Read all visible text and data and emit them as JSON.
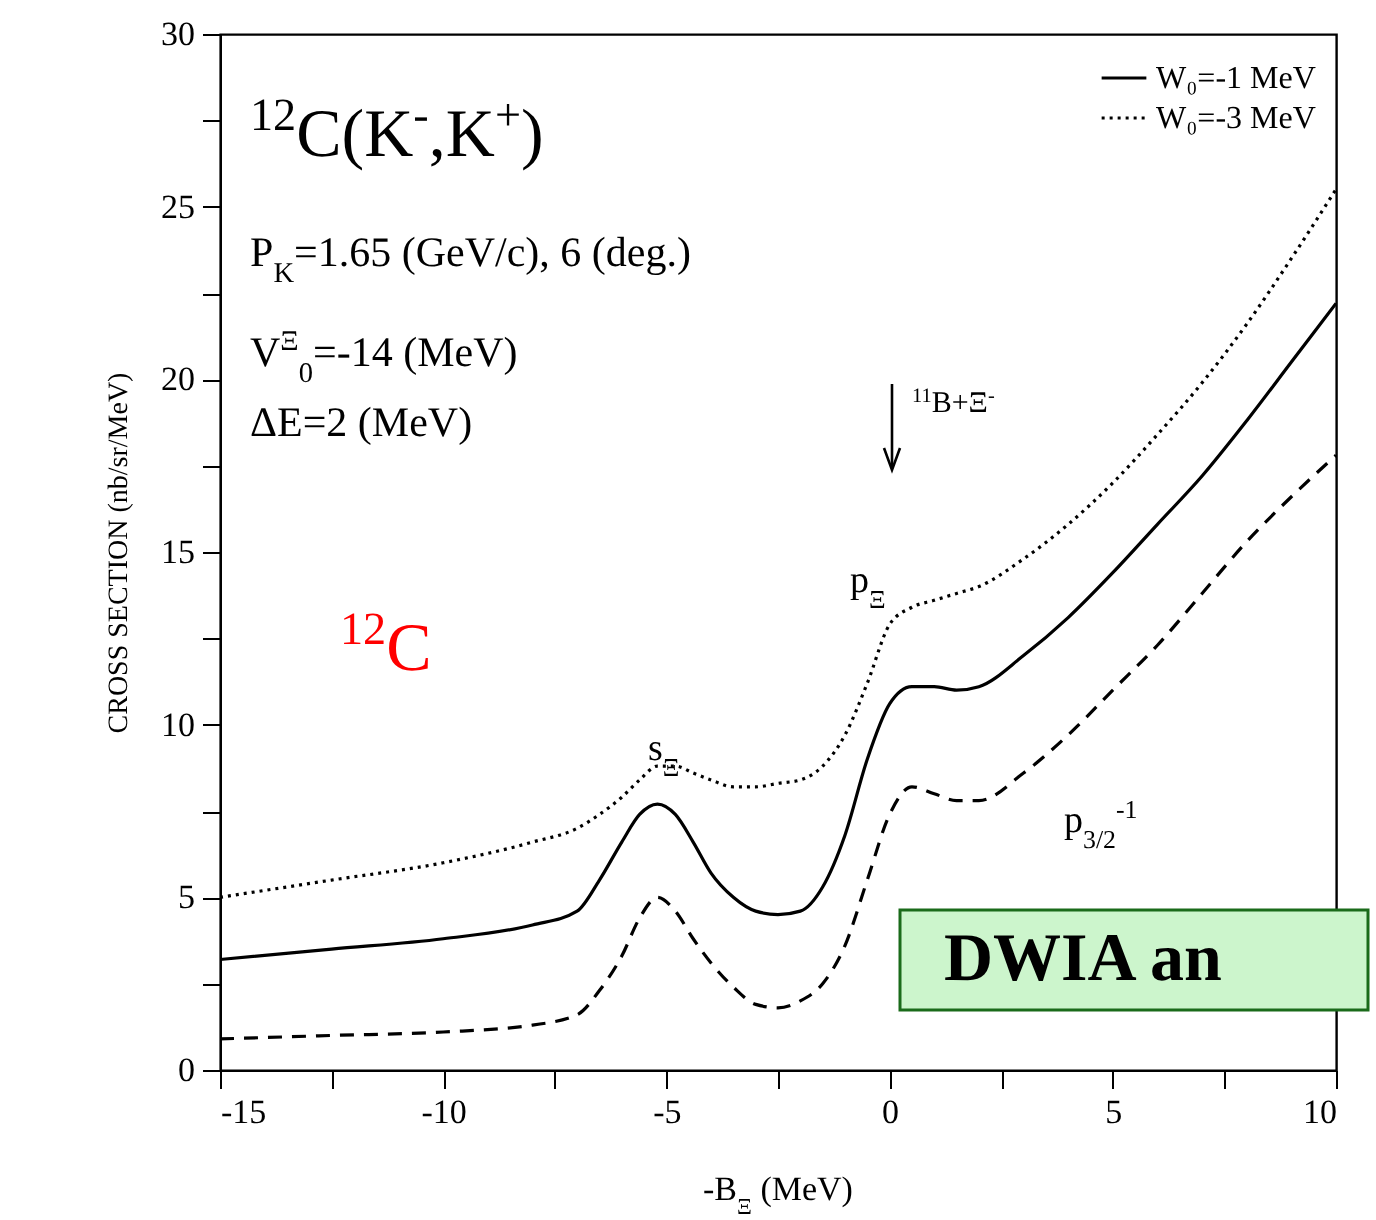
{
  "chart_data": {
    "type": "line",
    "xlabel": "-B$_{Ξ}$ (MeV)",
    "ylabel": "CROSS SECTION (nb/sr/MeV)",
    "x": [
      -15,
      -12.5,
      -10,
      -8,
      -7,
      -6.5,
      -6,
      -5.6,
      -5.2,
      -4.8,
      -4.4,
      -4,
      -3.5,
      -3,
      -2.5,
      -2,
      -1.5,
      -1,
      -0.5,
      0,
      0.5,
      1,
      1.5,
      2,
      3,
      4,
      5,
      6,
      7,
      8,
      9,
      10
    ],
    "series": [
      {
        "name": "W₀=-1 MeV",
        "color": "#000000",
        "line_style": "solid",
        "values": [
          3.2,
          3.5,
          3.8,
          4.2,
          4.6,
          5.5,
          6.6,
          7.4,
          7.7,
          7.4,
          6.6,
          5.7,
          5.0,
          4.6,
          4.5,
          4.6,
          5.3,
          6.8,
          9.0,
          10.6,
          11.1,
          11.1,
          11.0,
          11.1,
          12.0,
          13.1,
          14.4,
          15.8,
          17.2,
          18.8,
          20.5,
          22.2
        ]
      },
      {
        "name": "W₀=-3 MeV",
        "color": "#000000",
        "line_style": "dotted",
        "values": [
          5.0,
          5.5,
          6.0,
          6.6,
          7.0,
          7.4,
          7.9,
          8.4,
          8.8,
          8.8,
          8.6,
          8.4,
          8.2,
          8.2,
          8.3,
          8.4,
          8.8,
          9.7,
          11.2,
          12.9,
          13.4,
          13.6,
          13.8,
          14.0,
          14.8,
          15.8,
          17.0,
          18.4,
          19.9,
          21.6,
          23.5,
          25.5
        ]
      },
      {
        "color": "#000000",
        "line_style": "dashed",
        "values": [
          0.9,
          1.0,
          1.1,
          1.3,
          1.6,
          2.3,
          3.3,
          4.4,
          5.0,
          4.6,
          3.8,
          3.1,
          2.4,
          1.9,
          1.8,
          2.0,
          2.5,
          3.6,
          5.5,
          7.4,
          8.2,
          8.0,
          7.8,
          7.8,
          8.6,
          9.7,
          11.0,
          12.3,
          13.8,
          15.3,
          16.6,
          17.8
        ]
      }
    ],
    "xlim": [
      -15,
      10
    ],
    "xticks": [
      -15,
      {
        "value": -12.5,
        "label": null
      },
      -10,
      {
        "value": -7.5,
        "label": null
      },
      -5,
      {
        "value": -2.5,
        "label": null
      },
      0,
      {
        "value": 2.5,
        "label": null
      },
      5,
      {
        "value": 7.5,
        "label": null
      },
      10
    ],
    "ylim": [
      0,
      30
    ],
    "yticks": [
      0,
      {
        "value": 2.5,
        "label": null
      },
      5,
      {
        "value": 7.5,
        "label": null
      },
      10,
      {
        "value": 12.5,
        "label": null
      },
      15,
      {
        "value": 17.5,
        "label": null
      },
      20,
      {
        "value": 22.5,
        "label": null
      },
      25,
      {
        "value": 27.5,
        "label": null
      },
      30
    ],
    "legend": "top right",
    "grid": false,
    "annotations": [
      "$^{12}$C(K$^{-}$,K$^{+}$)",
      "P$_{K}$=1.65 (GeV/c), 6 (deg.)",
      "V$^{Ξ}$$_{0}$=-14 (MeV)",
      "ΔE=2 (MeV)",
      "$^{11}$B+Ξ$^{-}$",
      "s$_{Ξ}$",
      "p$_{Ξ}$",
      "p$_{3/2}$$^{-1}$",
      "$^{12}$C",
      "DWIA an"
    ]
  }
}
